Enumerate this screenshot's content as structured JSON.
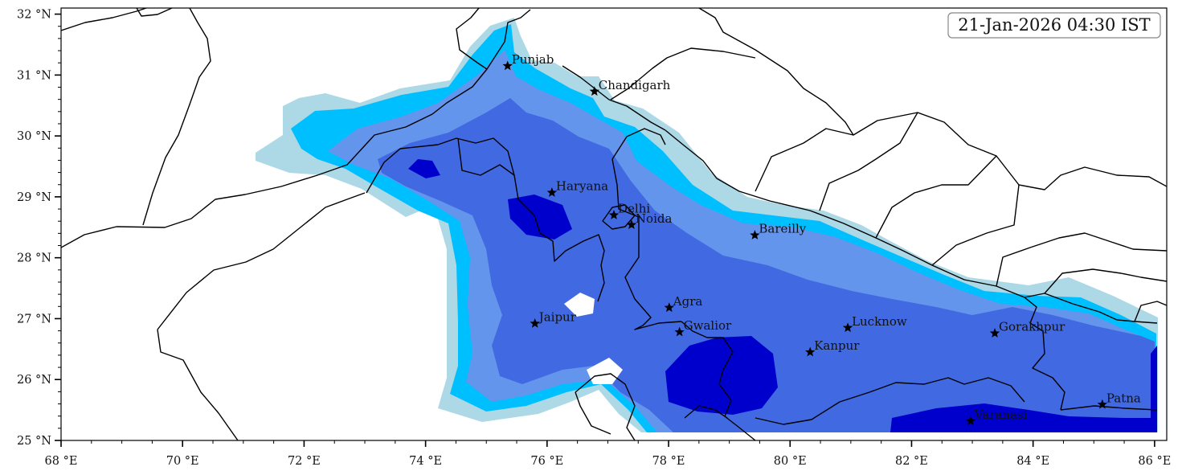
{
  "timestamp": "21-Jan-2026 04:30 IST",
  "x_axis": {
    "ticks": [
      "68 °E",
      "70 °E",
      "72 °E",
      "74 °E",
      "76 °E",
      "78 °E",
      "80 °E",
      "82 °E",
      "84 °E",
      "86 °E"
    ],
    "range_deg": [
      68,
      86.2
    ]
  },
  "y_axis": {
    "ticks": [
      "25 °N",
      "26 °N",
      "27 °N",
      "28 °N",
      "29 °N",
      "30 °N",
      "31 °N",
      "32 °N"
    ],
    "range_deg": [
      25,
      32.1
    ]
  },
  "cities": [
    {
      "name": "Punjab",
      "lon": 75.35,
      "lat": 31.15
    },
    {
      "name": "Chandigarh",
      "lon": 76.78,
      "lat": 30.73
    },
    {
      "name": "Haryana",
      "lon": 76.08,
      "lat": 29.07
    },
    {
      "name": "Delhi",
      "lon": 77.1,
      "lat": 28.7
    },
    {
      "name": "Noida",
      "lon": 77.39,
      "lat": 28.54
    },
    {
      "name": "Bareilly",
      "lon": 79.42,
      "lat": 28.37
    },
    {
      "name": "Agra",
      "lon": 78.01,
      "lat": 27.18
    },
    {
      "name": "Jaipur",
      "lon": 75.8,
      "lat": 26.92
    },
    {
      "name": "Gwalior",
      "lon": 78.18,
      "lat": 26.78
    },
    {
      "name": "Lucknow",
      "lon": 80.95,
      "lat": 26.85
    },
    {
      "name": "Gorakhpur",
      "lon": 83.37,
      "lat": 26.76
    },
    {
      "name": "Kanpur",
      "lon": 80.33,
      "lat": 26.45
    },
    {
      "name": "Patna",
      "lon": 85.14,
      "lat": 25.59
    },
    {
      "name": "Varanasi",
      "lon": 82.97,
      "lat": 25.32
    }
  ],
  "fill_levels": {
    "level1": "#add8e6",
    "level2": "#00bfff",
    "level3": "#6495ed",
    "level4": "#4169e1",
    "level5": "#0000cd"
  }
}
